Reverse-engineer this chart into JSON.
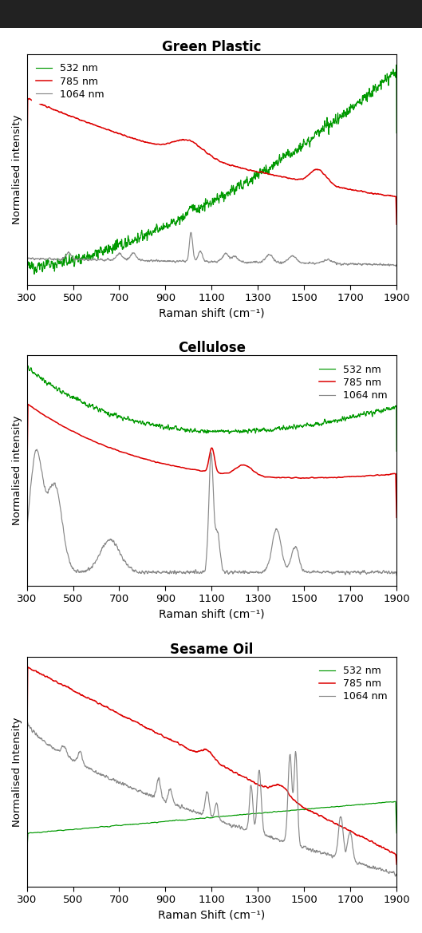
{
  "panels": [
    {
      "title": "Green Plastic",
      "ylabel": "Normalised intensity",
      "xlabel": "Raman shift (cm⁻¹)",
      "title_bold": true,
      "legend_loc": "upper left",
      "xlim": [
        300,
        1900
      ],
      "xticks": [
        300,
        500,
        700,
        900,
        1100,
        1300,
        1500,
        1700,
        1900
      ]
    },
    {
      "title": "Cellulose",
      "ylabel": "Normalised intensity",
      "xlabel": "Raman shift (cm⁻¹)",
      "title_bold": true,
      "legend_loc": "upper right",
      "xlim": [
        300,
        1900
      ],
      "xticks": [
        300,
        500,
        700,
        900,
        1100,
        1300,
        1500,
        1700,
        1900
      ]
    },
    {
      "title": "Sesame Oil",
      "ylabel": "Normalised Intensity",
      "xlabel": "Raman Shift (cm⁻¹)",
      "title_bold": true,
      "legend_loc": "upper right",
      "xlim": [
        300,
        1900
      ],
      "xticks": [
        300,
        500,
        700,
        900,
        1100,
        1300,
        1500,
        1700,
        1900
      ]
    }
  ],
  "line_colors": {
    "532": "#009900",
    "785": "#dd0000",
    "1064": "#888888"
  },
  "legend_labels": [
    "532 nm",
    "785 nm",
    "1064 nm"
  ],
  "background_color": "#ffffff",
  "fig_background": "#ffffff",
  "title_bar_color": "#222222"
}
